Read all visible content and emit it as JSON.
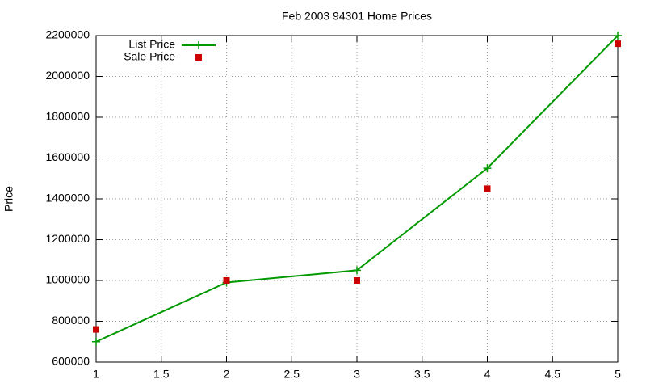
{
  "chart_data": {
    "type": "line",
    "title": "Feb 2003 94301 Home Prices",
    "y_label": "Price",
    "x": [
      1,
      2,
      3,
      4,
      5
    ],
    "series": [
      {
        "name": "List Price",
        "color": "#009900",
        "mode": "lines+markers",
        "marker": "plus",
        "values": [
          700000,
          990000,
          1050000,
          1550000,
          2200000
        ]
      },
      {
        "name": "Sale Price",
        "color": "#cc0000",
        "mode": "markers",
        "marker": "square",
        "values": [
          760000,
          1000000,
          1000000,
          1450000,
          2160000
        ]
      }
    ],
    "xlim": [
      1,
      5
    ],
    "xticks": [
      1,
      1.5,
      2,
      2.5,
      3,
      3.5,
      4,
      4.5,
      5
    ],
    "ylim": [
      600000,
      2200000
    ],
    "yticks": [
      600000,
      800000,
      1000000,
      1200000,
      1400000,
      1600000,
      1800000,
      2000000,
      2200000
    ],
    "grid": true,
    "legend": "top-left"
  }
}
